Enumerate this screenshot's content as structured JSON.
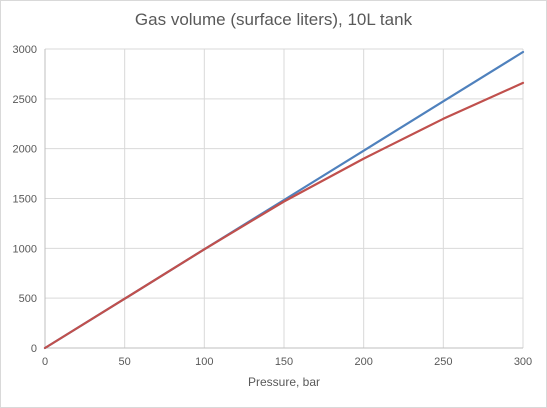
{
  "chart_data": {
    "type": "line",
    "title": "Gas volume (surface liters), 10L tank",
    "xlabel": "Pressure, bar",
    "ylabel": "",
    "xlim": [
      0,
      300
    ],
    "ylim": [
      0,
      3000
    ],
    "x_ticks": [
      0,
      50,
      100,
      150,
      200,
      250,
      300
    ],
    "y_ticks": [
      0,
      500,
      1000,
      1500,
      2000,
      2500,
      3000
    ],
    "grid": "vertical-and-horizontal",
    "legend": "none",
    "series": [
      {
        "color": "#4f81bd",
        "x": [
          0,
          50,
          100,
          150,
          200,
          250,
          300
        ],
        "y": [
          0,
          495,
          990,
          1485,
          1980,
          2475,
          2970
        ]
      },
      {
        "color": "#c0504d",
        "x": [
          0,
          50,
          100,
          150,
          200,
          250,
          300
        ],
        "y": [
          0,
          495,
          990,
          1470,
          1900,
          2300,
          2660
        ]
      }
    ]
  }
}
